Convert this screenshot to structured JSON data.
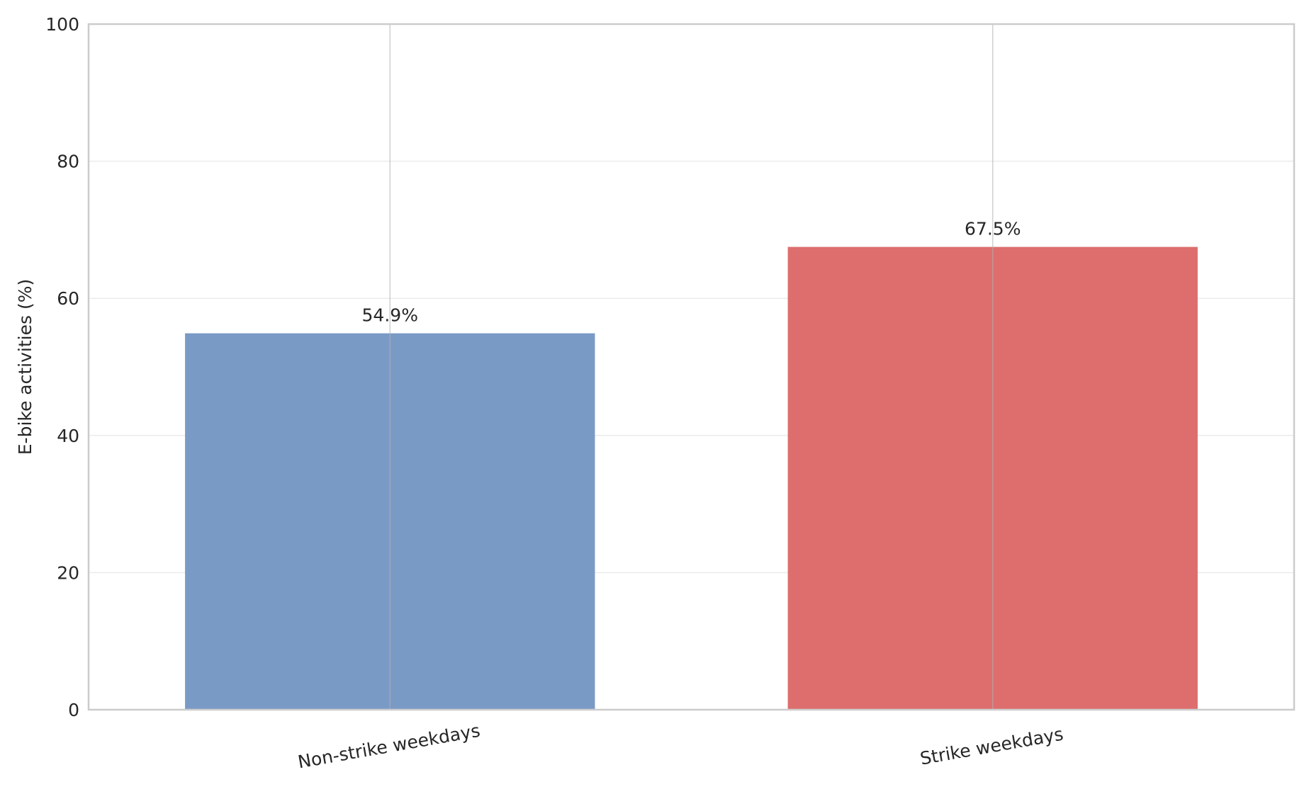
{
  "chart_data": {
    "type": "bar",
    "categories": [
      "Non-strike weekdays",
      "Strike weekdays"
    ],
    "values": [
      54.9,
      67.5
    ],
    "data_labels": [
      "54.9%",
      "67.5%"
    ],
    "bar_colors": [
      "#7a9ac6",
      "#dd6e6d"
    ],
    "title": "",
    "xlabel": "",
    "ylabel": "E-bike activities (%)",
    "ylim": [
      0,
      100
    ],
    "yticks": [
      0,
      20,
      40,
      60,
      80,
      100
    ],
    "grid": true,
    "legend": "none"
  }
}
